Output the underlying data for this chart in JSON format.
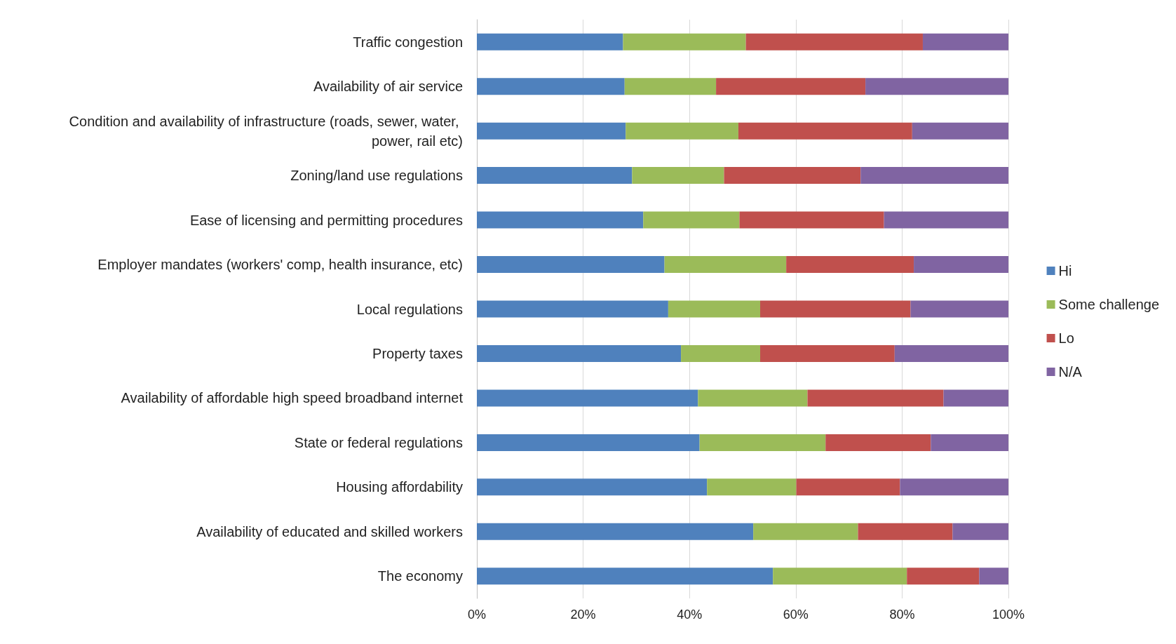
{
  "chart_data": {
    "type": "bar",
    "orientation": "horizontal",
    "stacked": true,
    "categories": [
      "Traffic congestion",
      "Availability of air service",
      "Condition and availability of infrastructure (roads, sewer, water, power, rail etc)",
      "Zoning/land use regulations",
      "Ease of licensing and permitting procedures",
      "Employer mandates (workers' comp, health insurance, etc)",
      "Local regulations",
      "Property taxes",
      "Availability of affordable high speed broadband internet",
      "State or federal regulations",
      "Housing affordability",
      "Availability of educated and skilled workers",
      "The economy"
    ],
    "series": [
      {
        "name": "Hi",
        "color": "#4f81bd",
        "values": [
          27.5,
          27.8,
          28.0,
          29.2,
          31.3,
          35.3,
          36.0,
          38.4,
          41.6,
          41.9,
          43.3,
          52.0,
          55.7
        ]
      },
      {
        "name": "Some challenge",
        "color": "#9bbb59",
        "values": [
          23.1,
          17.2,
          21.2,
          17.3,
          18.1,
          22.9,
          17.3,
          14.9,
          20.6,
          23.7,
          16.8,
          19.7,
          25.2
        ]
      },
      {
        "name": "Lo",
        "color": "#c0504d",
        "values": [
          33.3,
          28.1,
          32.7,
          25.7,
          27.2,
          24.0,
          28.3,
          25.3,
          25.6,
          19.8,
          19.5,
          17.8,
          13.6
        ]
      },
      {
        "name": "N/A",
        "color": "#8064a2",
        "values": [
          16.1,
          26.9,
          18.1,
          27.8,
          23.4,
          17.8,
          18.4,
          21.4,
          12.2,
          14.6,
          20.4,
          10.5,
          5.5
        ]
      }
    ],
    "xlim": [
      0,
      100
    ],
    "xticks": [
      {
        "value": 0,
        "label": "0%"
      },
      {
        "value": 20,
        "label": "20%"
      },
      {
        "value": 40,
        "label": "40%"
      },
      {
        "value": 60,
        "label": "60%"
      },
      {
        "value": 80,
        "label": "80%"
      },
      {
        "value": 100,
        "label": "100%"
      }
    ],
    "grid": "x",
    "legend": "right"
  }
}
